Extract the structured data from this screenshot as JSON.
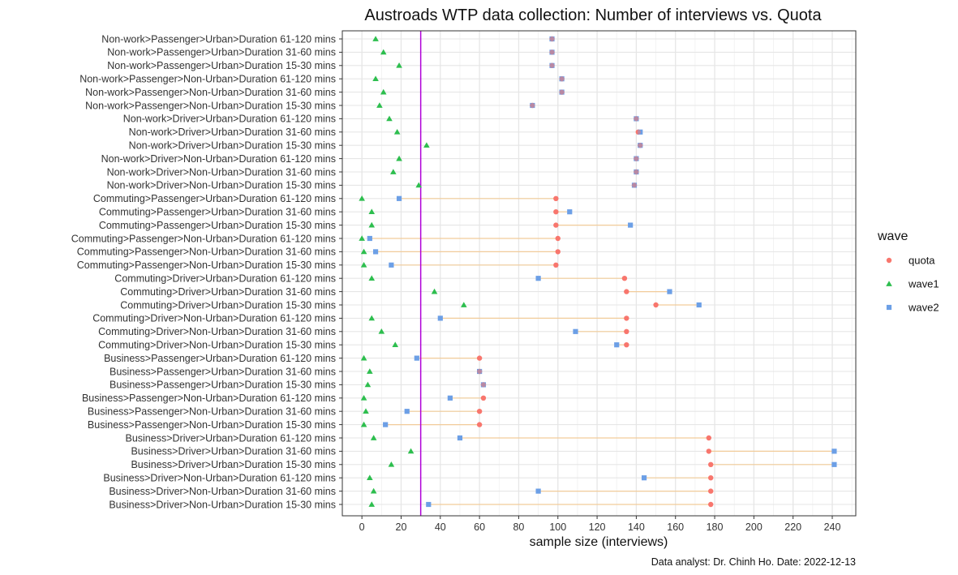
{
  "chart_data": {
    "type": "scatter",
    "title": "Austroads WTP data collection: Number of interviews vs. Quota",
    "xlabel": "sample size (interviews)",
    "caption": "Data analyst: Dr. Chinh Ho. Date: 2022-12-13",
    "xlim": [
      -10,
      252
    ],
    "xticks": [
      0,
      20,
      40,
      60,
      80,
      100,
      120,
      140,
      160,
      180,
      200,
      220,
      240
    ],
    "reference_line": 30,
    "grid": true,
    "legend": {
      "title": "wave",
      "position": "right",
      "entries": [
        {
          "name": "quota",
          "shape": "circle",
          "color": "#F8766D"
        },
        {
          "name": "wave1",
          "shape": "triangle",
          "color": "#2DBE4E"
        },
        {
          "name": "wave2",
          "shape": "square",
          "color": "#6C9FE6"
        }
      ]
    },
    "colors": {
      "quota": "#F8766D",
      "wave1": "#2DBE4E",
      "wave2": "#6C9FE6",
      "segment": "#F2CC9A",
      "reference": "#B000D8"
    },
    "categories": [
      "Non-work>Passenger>Urban>Duration 61-120 mins",
      "Non-work>Passenger>Urban>Duration 31-60 mins",
      "Non-work>Passenger>Urban>Duration 15-30 mins",
      "Non-work>Passenger>Non-Urban>Duration 61-120 mins",
      "Non-work>Passenger>Non-Urban>Duration 31-60 mins",
      "Non-work>Passenger>Non-Urban>Duration 15-30 mins",
      "Non-work>Driver>Urban>Duration 61-120 mins",
      "Non-work>Driver>Urban>Duration 31-60 mins",
      "Non-work>Driver>Urban>Duration 15-30 mins",
      "Non-work>Driver>Non-Urban>Duration 61-120 mins",
      "Non-work>Driver>Non-Urban>Duration 31-60 mins",
      "Non-work>Driver>Non-Urban>Duration 15-30 mins",
      "Commuting>Passenger>Urban>Duration 61-120 mins",
      "Commuting>Passenger>Urban>Duration 31-60 mins",
      "Commuting>Passenger>Urban>Duration 15-30 mins",
      "Commuting>Passenger>Non-Urban>Duration 61-120 mins",
      "Commuting>Passenger>Non-Urban>Duration 31-60 mins",
      "Commuting>Passenger>Non-Urban>Duration 15-30 mins",
      "Commuting>Driver>Urban>Duration 61-120 mins",
      "Commuting>Driver>Urban>Duration 31-60 mins",
      "Commuting>Driver>Urban>Duration 15-30 mins",
      "Commuting>Driver>Non-Urban>Duration 61-120 mins",
      "Commuting>Driver>Non-Urban>Duration 31-60 mins",
      "Commuting>Driver>Non-Urban>Duration 15-30 mins",
      "Business>Passenger>Urban>Duration 61-120 mins",
      "Business>Passenger>Urban>Duration 31-60 mins",
      "Business>Passenger>Urban>Duration 15-30 mins",
      "Business>Passenger>Non-Urban>Duration 61-120 mins",
      "Business>Passenger>Non-Urban>Duration 31-60 mins",
      "Business>Passenger>Non-Urban>Duration 15-30 mins",
      "Business>Driver>Urban>Duration 61-120 mins",
      "Business>Driver>Urban>Duration 31-60 mins",
      "Business>Driver>Urban>Duration 15-30 mins",
      "Business>Driver>Non-Urban>Duration 61-120 mins",
      "Business>Driver>Non-Urban>Duration 31-60 mins",
      "Business>Driver>Non-Urban>Duration 15-30 mins"
    ],
    "series": [
      {
        "name": "quota",
        "values": [
          97,
          97,
          97,
          102,
          102,
          87,
          140,
          141,
          142,
          140,
          140,
          139,
          99,
          99,
          99,
          100,
          100,
          99,
          134,
          135,
          150,
          135,
          135,
          135,
          60,
          60,
          62,
          62,
          60,
          60,
          177,
          177,
          178,
          178,
          178,
          178
        ]
      },
      {
        "name": "wave1",
        "values": [
          7,
          11,
          19,
          7,
          11,
          9,
          14,
          18,
          33,
          19,
          16,
          29,
          0,
          5,
          5,
          0,
          1,
          1,
          5,
          37,
          52,
          5,
          10,
          17,
          1,
          4,
          3,
          1,
          2,
          1,
          6,
          25,
          15,
          4,
          6,
          5
        ]
      },
      {
        "name": "wave2",
        "values": [
          97,
          97,
          97,
          102,
          102,
          87,
          140,
          142,
          142,
          140,
          140,
          139,
          19,
          106,
          137,
          4,
          7,
          15,
          90,
          157,
          172,
          40,
          109,
          130,
          28,
          60,
          62,
          45,
          23,
          12,
          50,
          241,
          241,
          144,
          90,
          34
        ]
      }
    ]
  }
}
